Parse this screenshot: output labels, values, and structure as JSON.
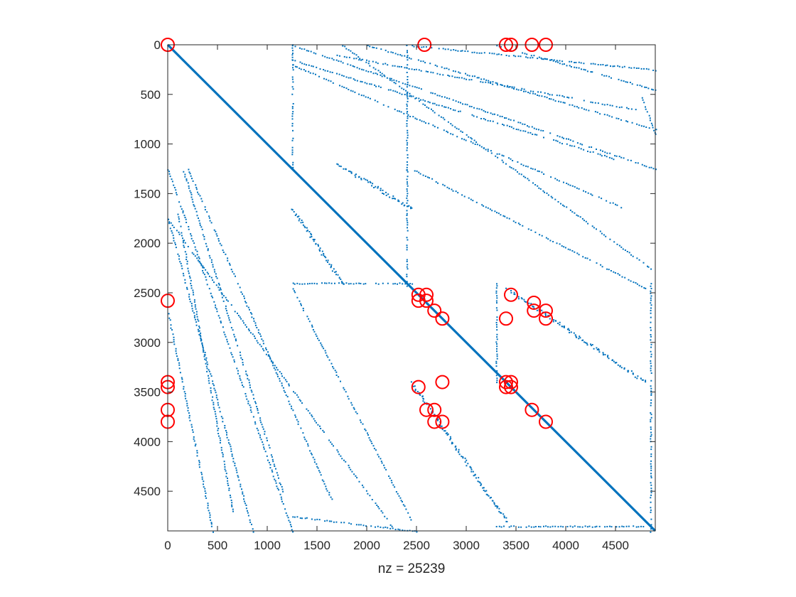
{
  "chart_data": {
    "type": "scatter",
    "title": "",
    "xlabel": "nz = 25239",
    "ylabel": "",
    "xlim": [
      0,
      4900
    ],
    "ylim": [
      0,
      4900
    ],
    "y_reversed": true,
    "grid": false,
    "legend": "none",
    "x_ticks": [
      0,
      500,
      1000,
      1500,
      2000,
      2500,
      3000,
      3500,
      4000,
      4500
    ],
    "y_ticks": [
      0,
      500,
      1000,
      1500,
      2000,
      2500,
      3000,
      3500,
      4000,
      4500
    ],
    "x_tick_labels": [
      "0",
      "500",
      "1000",
      "1500",
      "2000",
      "2500",
      "3000",
      "3500",
      "4000",
      "4500"
    ],
    "y_tick_labels": [
      "0",
      "500",
      "1000",
      "1500",
      "2000",
      "2500",
      "3000",
      "3500",
      "4000",
      "4500"
    ],
    "colors": {
      "nonzero": "#0072BD",
      "highlight": "#FF0000",
      "axis": "#262626"
    },
    "series": [
      {
        "kind": "nonzero-pattern",
        "segments": [
          {
            "x": [
              0,
              4900
            ],
            "y": [
              0,
              4900
            ],
            "weight": 3
          },
          {
            "x": [
              1250,
              4900
            ],
            "y": [
              0,
              1250
            ],
            "weight": 1
          },
          {
            "x": [
              2000,
              4900
            ],
            "y": [
              0,
              850
            ],
            "weight": 1
          },
          {
            "x": [
              3300,
              4900
            ],
            "y": [
              0,
              450
            ],
            "weight": 1
          },
          {
            "x": [
              1250,
              4500
            ],
            "y": [
              150,
              1150
            ],
            "weight": 1
          },
          {
            "x": [
              1700,
              4700
            ],
            "y": [
              100,
              650
            ],
            "weight": 1
          },
          {
            "x": [
              2400,
              4900
            ],
            "y": [
              0,
              250
            ],
            "weight": 1
          },
          {
            "x": [
              1250,
              4600
            ],
            "y": [
              200,
              1650
            ],
            "weight": 1
          },
          {
            "x": [
              1750,
              4850
            ],
            "y": [
              0,
              2250
            ],
            "weight": 1
          },
          {
            "x": [
              2450,
              4800
            ],
            "y": [
              1250,
              2450
            ],
            "weight": 1
          },
          {
            "x": [
              1700,
              2450
            ],
            "y": [
              1200,
              1650
            ],
            "weight": 2
          },
          {
            "x": [
              1250,
              1750
            ],
            "y": [
              1650,
              2400
            ],
            "weight": 2
          },
          {
            "x": [
              3400,
              4800
            ],
            "y": [
              2450,
              3400
            ],
            "weight": 2
          },
          {
            "x": [
              2450,
              3400
            ],
            "y": [
              3400,
              4800
            ],
            "weight": 2
          },
          {
            "x": [
              2400,
              2400
            ],
            "y": [
              1250,
              2450
            ],
            "weight": 1
          },
          {
            "x": [
              4850,
              4850
            ],
            "y": [
              2400,
              4900
            ],
            "weight": 1
          },
          {
            "x": [
              4750,
              4900
            ],
            "y": [
              500,
              900
            ],
            "weight": 1
          },
          {
            "x": [
              0,
              1250
            ],
            "y": [
              1250,
              4900
            ],
            "weight": 1
          },
          {
            "x": [
              0,
              850
            ],
            "y": [
              1750,
              4900
            ],
            "weight": 1
          },
          {
            "x": [
              0,
              450
            ],
            "y": [
              2700,
              4900
            ],
            "weight": 1
          },
          {
            "x": [
              150,
              1150
            ],
            "y": [
              1250,
              4500
            ],
            "weight": 1
          },
          {
            "x": [
              100,
              650
            ],
            "y": [
              1700,
              4700
            ],
            "weight": 1
          },
          {
            "x": [
              200,
              1650
            ],
            "y": [
              1250,
              4600
            ],
            "weight": 1
          },
          {
            "x": [
              0,
              2250
            ],
            "y": [
              1750,
              4850
            ],
            "weight": 1
          },
          {
            "x": [
              1250,
              2450
            ],
            "y": [
              2450,
              4800
            ],
            "weight": 1
          },
          {
            "x": [
              1250,
              2450
            ],
            "y": [
              2400,
              2400
            ],
            "weight": 1
          },
          {
            "x": [
              1250,
              1250
            ],
            "y": [
              0,
              1250
            ],
            "weight": 1
          },
          {
            "x": [
              2400,
              2400
            ],
            "y": [
              0,
              1250
            ],
            "weight": 1
          },
          {
            "x": [
              3300,
              3300
            ],
            "y": [
              2400,
              3400
            ],
            "weight": 1
          },
          {
            "x": [
              1250,
              2500
            ],
            "y": [
              4750,
              4900
            ],
            "weight": 1
          },
          {
            "x": [
              3300,
              4800
            ],
            "y": [
              4850,
              4850
            ],
            "weight": 1
          }
        ]
      },
      {
        "kind": "highlight-circles",
        "points": [
          [
            0,
            0
          ],
          [
            2580,
            0
          ],
          [
            3400,
            0
          ],
          [
            3450,
            0
          ],
          [
            3660,
            0
          ],
          [
            3800,
            0
          ],
          [
            0,
            2580
          ],
          [
            2520,
            2520
          ],
          [
            2600,
            2520
          ],
          [
            2520,
            2580
          ],
          [
            2600,
            2580
          ],
          [
            2680,
            2680
          ],
          [
            2760,
            2760
          ],
          [
            3450,
            2520
          ],
          [
            3400,
            2760
          ],
          [
            3680,
            2600
          ],
          [
            3680,
            2680
          ],
          [
            3800,
            2680
          ],
          [
            3800,
            2760
          ],
          [
            0,
            3400
          ],
          [
            0,
            3450
          ],
          [
            0,
            3680
          ],
          [
            0,
            3800
          ],
          [
            2520,
            3450
          ],
          [
            2600,
            3680
          ],
          [
            2680,
            3680
          ],
          [
            2680,
            3800
          ],
          [
            2760,
            3800
          ],
          [
            2760,
            3400
          ],
          [
            3400,
            3400
          ],
          [
            3450,
            3400
          ],
          [
            3400,
            3450
          ],
          [
            3450,
            3450
          ],
          [
            3660,
            3680
          ],
          [
            3800,
            3800
          ]
        ]
      }
    ]
  }
}
